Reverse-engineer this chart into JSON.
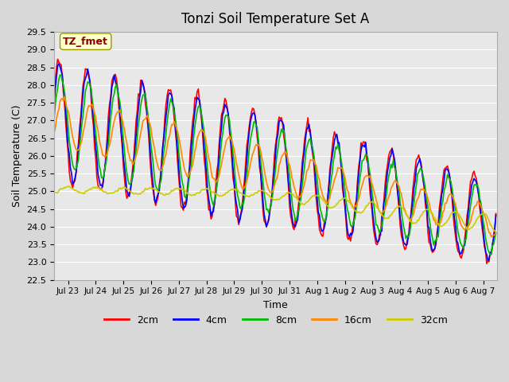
{
  "title": "Tonzi Soil Temperature Set A",
  "xlabel": "Time",
  "ylabel": "Soil Temperature (C)",
  "ylim": [
    22.5,
    29.5
  ],
  "series_colors": {
    "2cm": "#ff0000",
    "4cm": "#0000ff",
    "8cm": "#00bb00",
    "16cm": "#ff8800",
    "32cm": "#cccc00"
  },
  "legend_label": "TZ_fmet",
  "x_tick_labels": [
    "Jul 23",
    "Jul 24",
    "Jul 25",
    "Jul 26",
    "Jul 27",
    "Jul 28",
    "Jul 29",
    "Jul 30",
    "Jul 31",
    "Aug 1",
    "Aug 2",
    "Aug 3",
    "Aug 4",
    "Aug 5",
    "Aug 6",
    "Aug 7"
  ]
}
